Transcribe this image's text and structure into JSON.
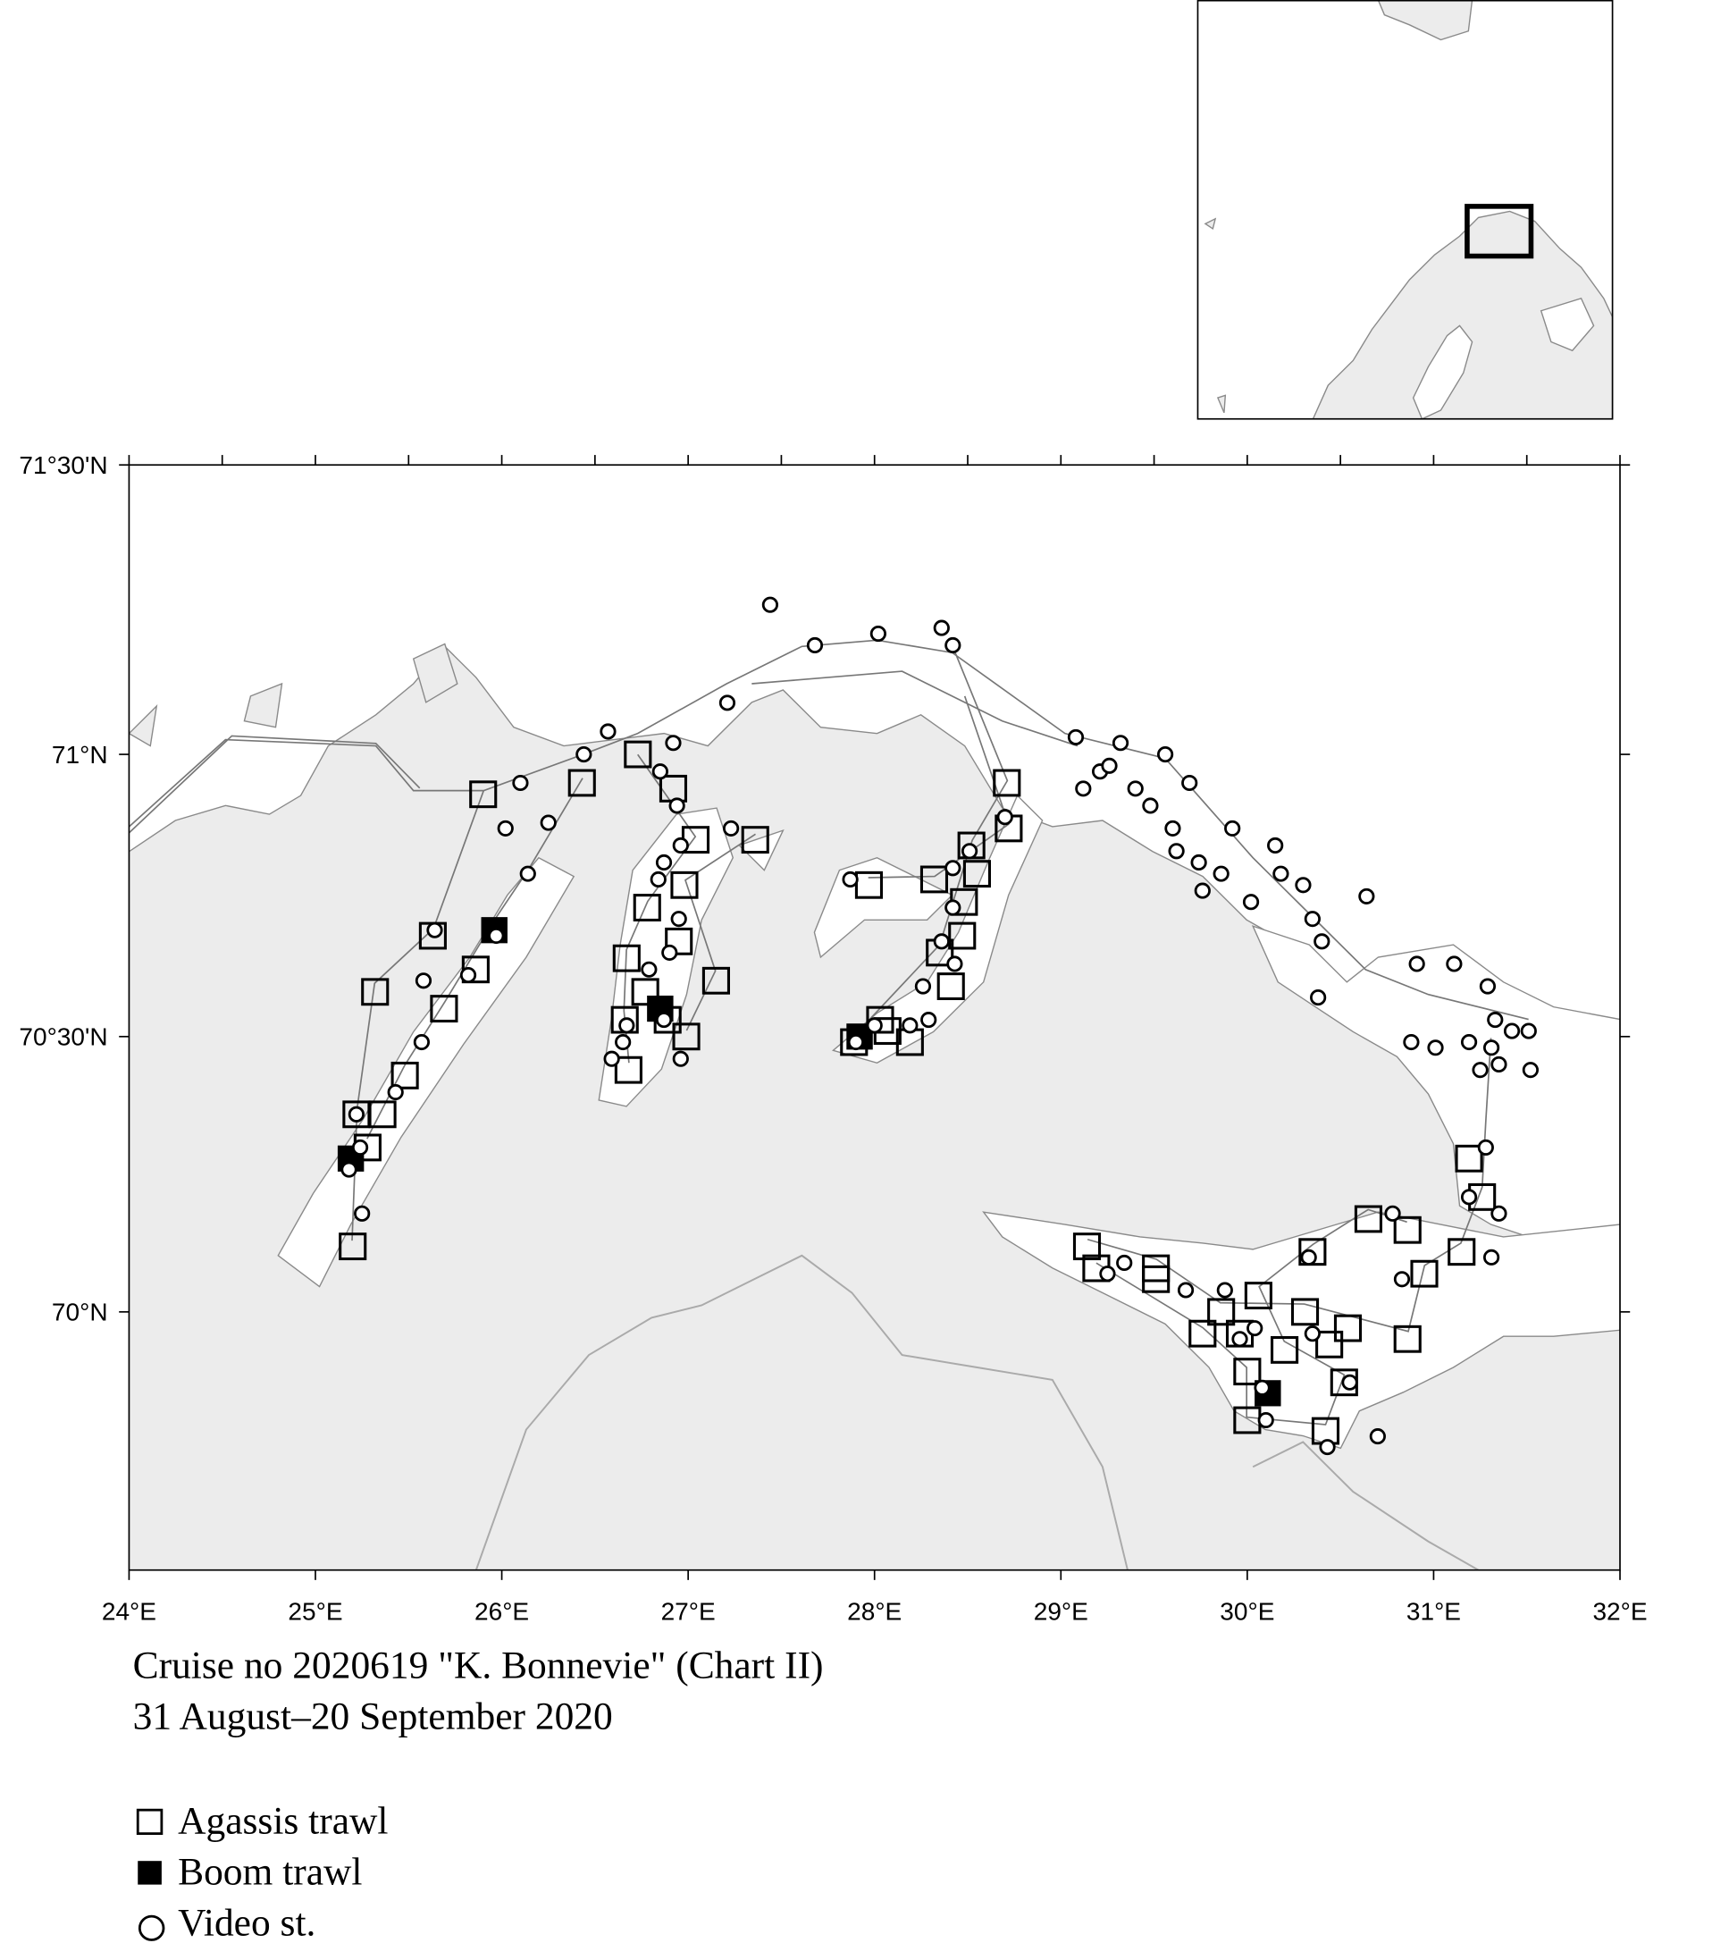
{
  "map": {
    "projection": "mercator",
    "xlim": [
      24,
      32
    ],
    "ylim": [
      69.52,
      71.5
    ],
    "xticks": [
      {
        "value": 24,
        "label": "24°E"
      },
      {
        "value": 25,
        "label": "25°E"
      },
      {
        "value": 26,
        "label": "26°E"
      },
      {
        "value": 27,
        "label": "27°E"
      },
      {
        "value": 28,
        "label": "28°E"
      },
      {
        "value": 29,
        "label": "29°E"
      },
      {
        "value": 30,
        "label": "30°E"
      },
      {
        "value": 31,
        "label": "31°E"
      },
      {
        "value": 32,
        "label": "32°E"
      }
    ],
    "xminor": [
      24.5,
      25.5,
      26.5,
      27.5,
      28.5,
      29.5,
      30.5,
      31.5
    ],
    "yticks": [
      {
        "value": 70,
        "label": "70°N"
      },
      {
        "value": 70.5,
        "label": "70°30'N"
      },
      {
        "value": 71,
        "label": "71°N"
      },
      {
        "value": 71.5,
        "label": "71°30'N"
      }
    ]
  },
  "caption": [
    "Cruise no 2020619  \"K. Bonnevie\"  (Chart II)",
    "31 August–20 September 2020"
  ],
  "legend": [
    "Agassis trawl",
    "Boom trawl",
    "Video st."
  ],
  "stations": {
    "agassiz": {
      "lon": [
        25.9,
        26.43,
        26.73,
        26.92,
        27.04,
        27.36,
        26.98,
        26.78,
        26.95,
        26.67,
        27.15,
        26.77,
        26.66,
        26.89,
        26.99,
        26.68,
        25.63,
        25.86,
        25.69,
        25.32,
        25.48,
        25.36,
        25.22,
        25.28,
        25.2,
        27.97,
        28.32,
        28.52,
        28.71,
        28.72,
        28.55,
        28.48,
        28.47,
        28.35,
        28.41,
        28.03,
        28.07,
        28.19,
        27.89,
        31.19,
        31.26,
        31.15,
        30.95,
        30.86,
        30.65,
        30.35,
        30.86,
        30.54,
        30.44,
        30.31,
        30.2,
        30.06,
        30.0,
        30.0,
        30.42,
        30.52,
        29.86,
        29.76,
        29.96,
        29.51,
        29.51,
        29.19,
        29.14
      ],
      "lat": [
        70.93,
        70.95,
        71.0,
        70.94,
        70.85,
        70.85,
        70.77,
        70.73,
        70.67,
        70.64,
        70.6,
        70.58,
        70.53,
        70.53,
        70.5,
        70.44,
        70.68,
        70.62,
        70.55,
        70.58,
        70.43,
        70.36,
        70.36,
        70.3,
        70.12,
        70.77,
        70.78,
        70.84,
        70.95,
        70.87,
        70.79,
        70.74,
        70.68,
        70.65,
        70.59,
        70.53,
        70.51,
        70.49,
        70.49,
        70.28,
        70.21,
        70.11,
        70.07,
        70.15,
        70.17,
        70.11,
        69.95,
        69.97,
        69.94,
        70.0,
        69.93,
        70.03,
        69.89,
        69.8,
        69.78,
        69.87,
        70.0,
        69.96,
        69.96,
        70.08,
        70.06,
        70.08,
        70.12
      ]
    },
    "boom": {
      "lon": [
        25.96,
        25.19,
        26.85,
        27.92,
        30.11
      ],
      "lat": [
        70.69,
        70.28,
        70.55,
        70.5,
        69.85
      ]
    },
    "video": {
      "lon": [
        27.44,
        27.68,
        28.02,
        28.36,
        28.42,
        27.21,
        26.57,
        26.92,
        26.44,
        26.1,
        26.02,
        26.25,
        26.14,
        26.85,
        26.94,
        26.96,
        26.87,
        26.84,
        25.64,
        25.97,
        25.82,
        25.58,
        25.57,
        25.43,
        25.22,
        25.24,
        25.18,
        25.25,
        26.79,
        26.9,
        26.95,
        26.67,
        26.87,
        26.65,
        26.59,
        26.96,
        27.23,
        27.87,
        27.9,
        28.0,
        28.19,
        28.29,
        28.26,
        28.36,
        28.43,
        28.42,
        28.42,
        28.51,
        28.7,
        29.08,
        29.12,
        29.21,
        29.26,
        29.32,
        29.4,
        29.48,
        29.56,
        29.69,
        29.6,
        29.62,
        29.74,
        29.76,
        29.86,
        29.92,
        30.02,
        30.15,
        30.18,
        30.3,
        30.35,
        30.4,
        30.38,
        30.64,
        30.91,
        31.11,
        31.29,
        31.33,
        31.42,
        31.51,
        31.52,
        31.35,
        31.25,
        31.31,
        31.19,
        31.01,
        30.88,
        31.28,
        31.19,
        31.35,
        31.31,
        30.78,
        30.83,
        30.33,
        30.35,
        30.55,
        30.7,
        30.43,
        30.1,
        30.04,
        29.96,
        29.88,
        29.67,
        29.34,
        29.25,
        30.08
      ],
      "lat": [
        71.26,
        71.19,
        71.21,
        71.22,
        71.19,
        71.09,
        71.04,
        71.02,
        71.0,
        70.95,
        70.87,
        70.88,
        70.79,
        70.97,
        70.91,
        70.84,
        70.81,
        70.78,
        70.69,
        70.68,
        70.61,
        70.6,
        70.49,
        70.4,
        70.36,
        70.3,
        70.26,
        70.18,
        70.62,
        70.65,
        70.71,
        70.52,
        70.53,
        70.49,
        70.46,
        70.46,
        70.87,
        70.78,
        70.49,
        70.52,
        70.52,
        70.53,
        70.59,
        70.67,
        70.63,
        70.73,
        70.8,
        70.83,
        70.89,
        71.03,
        70.94,
        70.97,
        70.98,
        71.02,
        70.94,
        70.91,
        71.0,
        70.95,
        70.87,
        70.83,
        70.81,
        70.76,
        70.79,
        70.87,
        70.74,
        70.84,
        70.79,
        70.77,
        70.71,
        70.67,
        70.57,
        70.75,
        70.63,
        70.63,
        70.59,
        70.53,
        70.51,
        70.51,
        70.44,
        70.45,
        70.44,
        70.48,
        70.49,
        70.48,
        70.49,
        70.3,
        70.21,
        70.18,
        70.1,
        70.18,
        70.06,
        70.1,
        69.96,
        69.87,
        69.77,
        69.75,
        69.8,
        69.97,
        69.95,
        70.04,
        70.04,
        70.09,
        70.07,
        69.86
      ]
    }
  }
}
